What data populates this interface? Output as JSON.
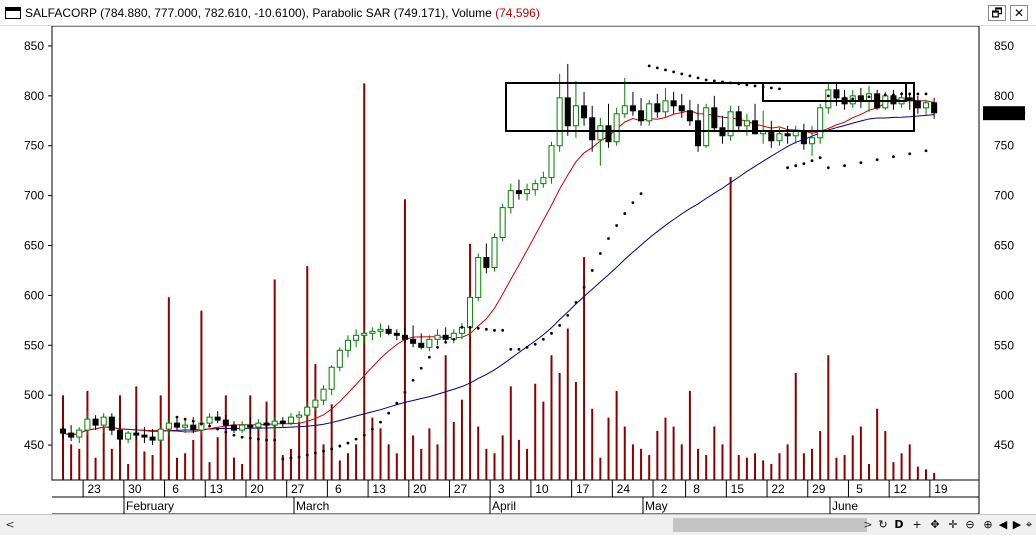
{
  "window": {
    "symbol": "SALFACORP",
    "quote_values": "(784.880, 777.000, 782.610, -10.6100),",
    "indicator_label": "Parabolic SAR (749.171),",
    "volume_label": "Volume",
    "volume_value": "(74,596)",
    "restore_glyph": "🗗",
    "close_glyph": "✕"
  },
  "colors": {
    "up_candle": "#008000",
    "down_candle": "#000000",
    "volume_bar": "#8b0000",
    "fast_ma": "#d40000",
    "slow_ma": "#00008b",
    "sar_dots": "#000000",
    "price_badge_bg": "#000000",
    "price_badge_text": "#ffffff"
  },
  "chart_data": {
    "type": "candlestick",
    "y_ticks": [
      450,
      500,
      550,
      600,
      650,
      700,
      750,
      800,
      850
    ],
    "ylim": [
      415,
      870
    ],
    "last_price_label": "782.610",
    "x_day_labels": [
      "23",
      "30",
      "6",
      "13",
      "20",
      "27",
      "6",
      "13",
      "20",
      "27",
      "3",
      "10",
      "17",
      "24",
      "2",
      "8",
      "15",
      "22",
      "29",
      "5",
      "12",
      "19"
    ],
    "x_month_labels": [
      "February",
      "March",
      "April",
      "May",
      "June"
    ],
    "series": [
      {
        "name": "Parabolic SAR",
        "value": 749.171
      },
      {
        "name": "Volume",
        "value": 74596
      }
    ],
    "ohlc": [
      [
        466,
        468,
        456,
        462
      ],
      [
        462,
        470,
        454,
        458
      ],
      [
        458,
        468,
        452,
        465
      ],
      [
        465,
        484,
        460,
        476
      ],
      [
        476,
        480,
        465,
        470
      ],
      [
        470,
        482,
        462,
        478
      ],
      [
        478,
        482,
        460,
        465
      ],
      [
        465,
        472,
        450,
        456
      ],
      [
        456,
        464,
        452,
        462
      ],
      [
        462,
        470,
        455,
        460
      ],
      [
        460,
        468,
        452,
        458
      ],
      [
        458,
        466,
        450,
        455
      ],
      [
        455,
        468,
        453,
        466
      ],
      [
        466,
        475,
        460,
        472
      ],
      [
        472,
        478,
        465,
        468
      ],
      [
        468,
        476,
        462,
        470
      ],
      [
        470,
        478,
        462,
        465
      ],
      [
        465,
        475,
        460,
        472
      ],
      [
        472,
        482,
        468,
        478
      ],
      [
        478,
        484,
        472,
        475
      ],
      [
        475,
        480,
        468,
        470
      ],
      [
        470,
        474,
        462,
        465
      ],
      [
        465,
        474,
        462,
        470
      ],
      [
        470,
        478,
        462,
        468
      ],
      [
        468,
        476,
        465,
        472
      ],
      [
        472,
        476,
        466,
        470
      ],
      [
        470,
        478,
        465,
        474
      ],
      [
        474,
        478,
        468,
        472
      ],
      [
        472,
        482,
        470,
        478
      ],
      [
        478,
        484,
        472,
        480
      ],
      [
        480,
        492,
        475,
        488
      ],
      [
        488,
        498,
        484,
        495
      ],
      [
        495,
        510,
        490,
        506
      ],
      [
        506,
        530,
        500,
        528
      ],
      [
        528,
        548,
        524,
        545
      ],
      [
        545,
        560,
        538,
        555
      ],
      [
        555,
        566,
        548,
        560
      ],
      [
        560,
        566,
        552,
        562
      ],
      [
        562,
        568,
        555,
        564
      ],
      [
        564,
        572,
        558,
        566
      ],
      [
        566,
        570,
        560,
        562
      ],
      [
        562,
        566,
        555,
        560
      ],
      [
        560,
        568,
        552,
        556
      ],
      [
        556,
        570,
        548,
        552
      ],
      [
        552,
        562,
        546,
        548
      ],
      [
        548,
        560,
        544,
        556
      ],
      [
        556,
        566,
        550,
        560
      ],
      [
        560,
        568,
        552,
        556
      ],
      [
        556,
        566,
        552,
        562
      ],
      [
        562,
        572,
        556,
        568
      ],
      [
        568,
        600,
        560,
        598
      ],
      [
        598,
        642,
        594,
        638
      ],
      [
        638,
        652,
        622,
        628
      ],
      [
        628,
        662,
        624,
        658
      ],
      [
        658,
        692,
        654,
        688
      ],
      [
        688,
        712,
        682,
        705
      ],
      [
        705,
        716,
        696,
        702
      ],
      [
        702,
        712,
        695,
        706
      ],
      [
        706,
        716,
        700,
        712
      ],
      [
        712,
        724,
        708,
        718
      ],
      [
        718,
        754,
        712,
        750
      ],
      [
        750,
        822,
        744,
        798
      ],
      [
        798,
        832,
        760,
        770
      ],
      [
        770,
        815,
        758,
        790
      ],
      [
        790,
        804,
        770,
        778
      ],
      [
        778,
        790,
        744,
        756
      ],
      [
        756,
        778,
        730,
        770
      ],
      [
        770,
        792,
        748,
        754
      ],
      [
        754,
        788,
        750,
        782
      ],
      [
        782,
        818,
        778,
        790
      ],
      [
        790,
        804,
        780,
        785
      ],
      [
        785,
        798,
        770,
        775
      ],
      [
        775,
        796,
        770,
        792
      ],
      [
        792,
        802,
        778,
        784
      ],
      [
        784,
        808,
        778,
        795
      ],
      [
        795,
        804,
        782,
        790
      ],
      [
        790,
        802,
        778,
        785
      ],
      [
        785,
        796,
        770,
        775
      ],
      [
        775,
        792,
        744,
        750
      ],
      [
        750,
        792,
        748,
        788
      ],
      [
        788,
        800,
        764,
        768
      ],
      [
        768,
        780,
        752,
        760
      ],
      [
        760,
        790,
        755,
        784
      ],
      [
        784,
        790,
        765,
        770
      ],
      [
        770,
        782,
        760,
        775
      ],
      [
        775,
        792,
        764,
        762
      ],
      [
        762,
        785,
        752,
        765
      ],
      [
        765,
        775,
        748,
        755
      ],
      [
        755,
        768,
        750,
        762
      ],
      [
        762,
        770,
        752,
        760
      ],
      [
        760,
        770,
        752,
        765
      ],
      [
        765,
        772,
        746,
        752
      ],
      [
        752,
        770,
        740,
        758
      ],
      [
        758,
        792,
        752,
        788
      ],
      [
        788,
        812,
        782,
        806
      ],
      [
        806,
        812,
        790,
        798
      ],
      [
        798,
        806,
        786,
        792
      ],
      [
        792,
        806,
        788,
        800
      ],
      [
        800,
        808,
        788,
        795
      ],
      [
        795,
        810,
        784,
        802
      ],
      [
        802,
        806,
        786,
        788
      ],
      [
        788,
        804,
        786,
        800
      ],
      [
        800,
        806,
        786,
        792
      ],
      [
        792,
        804,
        788,
        798
      ],
      [
        798,
        802,
        786,
        795
      ],
      [
        795,
        800,
        782,
        788
      ],
      [
        788,
        796,
        780,
        793
      ],
      [
        793,
        798,
        777,
        783
      ]
    ],
    "volume": [
      95,
      40,
      35,
      100,
      25,
      60,
      35,
      95,
      18,
      105,
      32,
      28,
      95,
      205,
      25,
      30,
      45,
      190,
      20,
      48,
      95,
      25,
      18,
      95,
      60,
      88,
      225,
      28,
      35,
      65,
      240,
      130,
      40,
      85,
      22,
      30,
      40,
      445,
      70,
      58,
      40,
      30,
      315,
      50,
      35,
      58,
      40,
      140,
      65,
      90,
      265,
      60,
      35,
      30,
      50,
      105,
      45,
      35,
      108,
      88,
      140,
      120,
      170,
      110,
      250,
      80,
      25,
      70,
      100,
      60,
      40,
      35,
      28,
      55,
      70,
      60,
      40,
      100,
      35,
      28,
      60,
      40,
      340,
      28,
      25,
      30,
      22,
      18,
      30,
      40,
      120,
      30,
      35,
      55,
      140,
      25,
      28,
      50,
      60,
      18,
      80,
      55,
      20,
      30,
      40,
      15,
      12,
      8
    ],
    "sar": [
      [
        14,
        478
      ],
      [
        15,
        476
      ],
      [
        16,
        474
      ],
      [
        17,
        471
      ],
      [
        18,
        469
      ],
      [
        19,
        466
      ],
      [
        20,
        463
      ],
      [
        21,
        460
      ],
      [
        22,
        458
      ],
      [
        23,
        457
      ],
      [
        24,
        456
      ],
      [
        25,
        455
      ],
      [
        26,
        455
      ],
      [
        27,
        436
      ],
      [
        28,
        437
      ],
      [
        29,
        438
      ],
      [
        30,
        440
      ],
      [
        31,
        442
      ],
      [
        32,
        444
      ],
      [
        33,
        446
      ],
      [
        34,
        449
      ],
      [
        35,
        452
      ],
      [
        36,
        456
      ],
      [
        37,
        460
      ],
      [
        38,
        466
      ],
      [
        39,
        473
      ],
      [
        40,
        482
      ],
      [
        41,
        492
      ],
      [
        42,
        503
      ],
      [
        43,
        515
      ],
      [
        44,
        527
      ],
      [
        45,
        538
      ],
      [
        46,
        548
      ],
      [
        47,
        553
      ],
      [
        48,
        556
      ],
      [
        49,
        568
      ],
      [
        50,
        568
      ],
      [
        51,
        567
      ],
      [
        52,
        566
      ],
      [
        53,
        565
      ],
      [
        54,
        565
      ],
      [
        55,
        546
      ],
      [
        56,
        546
      ],
      [
        57,
        548
      ],
      [
        58,
        551
      ],
      [
        59,
        556
      ],
      [
        60,
        562
      ],
      [
        61,
        570
      ],
      [
        62,
        580
      ],
      [
        63,
        593
      ],
      [
        64,
        608
      ],
      [
        65,
        625
      ],
      [
        66,
        642
      ],
      [
        67,
        657
      ],
      [
        68,
        670
      ],
      [
        69,
        682
      ],
      [
        70,
        693
      ],
      [
        71,
        702
      ],
      [
        72,
        830
      ],
      [
        73,
        828
      ],
      [
        74,
        826
      ],
      [
        75,
        824
      ],
      [
        76,
        822
      ],
      [
        77,
        820
      ],
      [
        78,
        818
      ],
      [
        79,
        816
      ],
      [
        80,
        815
      ],
      [
        81,
        814
      ],
      [
        82,
        813
      ],
      [
        83,
        812
      ],
      [
        84,
        811
      ],
      [
        85,
        810
      ],
      [
        86,
        809
      ],
      [
        87,
        808
      ],
      [
        88,
        807
      ],
      [
        89,
        728
      ],
      [
        90,
        730
      ],
      [
        91,
        732
      ],
      [
        92,
        735
      ],
      [
        93,
        738
      ],
      [
        94,
        800
      ],
      [
        95,
        799
      ],
      [
        96,
        798
      ],
      [
        97,
        797
      ],
      [
        98,
        798
      ],
      [
        99,
        799
      ],
      [
        100,
        800
      ],
      [
        101,
        801
      ],
      [
        102,
        801
      ],
      [
        103,
        802
      ],
      [
        104,
        802
      ],
      [
        105,
        802
      ],
      [
        106,
        802
      ],
      [
        94,
        728
      ],
      [
        96,
        730
      ],
      [
        98,
        733
      ],
      [
        100,
        736
      ],
      [
        102,
        739
      ],
      [
        104,
        742
      ],
      [
        106,
        745
      ]
    ]
  }
}
